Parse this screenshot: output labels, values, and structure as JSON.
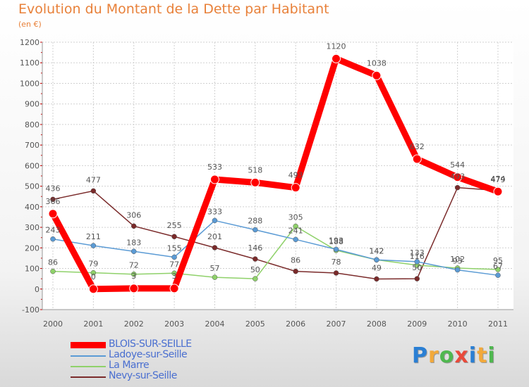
{
  "chart_data": {
    "type": "line",
    "title": "Evolution du Montant de la Dette par Habitant",
    "subtitle": "(en €)",
    "x": [
      "2000",
      "2001",
      "2002",
      "2003",
      "2004",
      "2005",
      "2006",
      "2007",
      "2008",
      "2009",
      "2010",
      "2011"
    ],
    "ylim": [
      -100,
      1200
    ],
    "yticks": [
      -100,
      0,
      100,
      200,
      300,
      400,
      500,
      600,
      700,
      800,
      900,
      1000,
      1100,
      1200
    ],
    "grid": true,
    "legend_position": "bottom-left",
    "series": [
      {
        "name": "BLOIS-SUR-SEILLE",
        "color": "#ff0000",
        "values": [
          366,
          0,
          3,
          3,
          533,
          518,
          493,
          1120,
          1038,
          632,
          544,
          474
        ]
      },
      {
        "name": "Ladoye-sur-Seille",
        "color": "#5b9bd5",
        "values": [
          243,
          211,
          183,
          155,
          333,
          288,
          241,
          193,
          142,
          133,
          93,
          67
        ]
      },
      {
        "name": "La Marre",
        "color": "#8fd16a",
        "values": [
          86,
          79,
          72,
          77,
          57,
          50,
          305,
          188,
          142,
          116,
          102,
          95
        ]
      },
      {
        "name": "Nevy-sur-Seille",
        "color": "#7a2a2a",
        "values": [
          436,
          477,
          306,
          255,
          201,
          146,
          86,
          78,
          49,
          50,
          493,
          479
        ]
      }
    ]
  },
  "branding": {
    "logo_letters": [
      {
        "ch": "P",
        "color": "#2a7fd4"
      },
      {
        "ch": "r",
        "color": "#f2a93b"
      },
      {
        "ch": "o",
        "color": "#4fb84f"
      },
      {
        "ch": "x",
        "color": "#e94a3a"
      },
      {
        "ch": "i",
        "color": "#2a7fd4"
      },
      {
        "ch": "t",
        "color": "#f2a93b"
      },
      {
        "ch": "i",
        "color": "#4fb84f"
      }
    ]
  }
}
